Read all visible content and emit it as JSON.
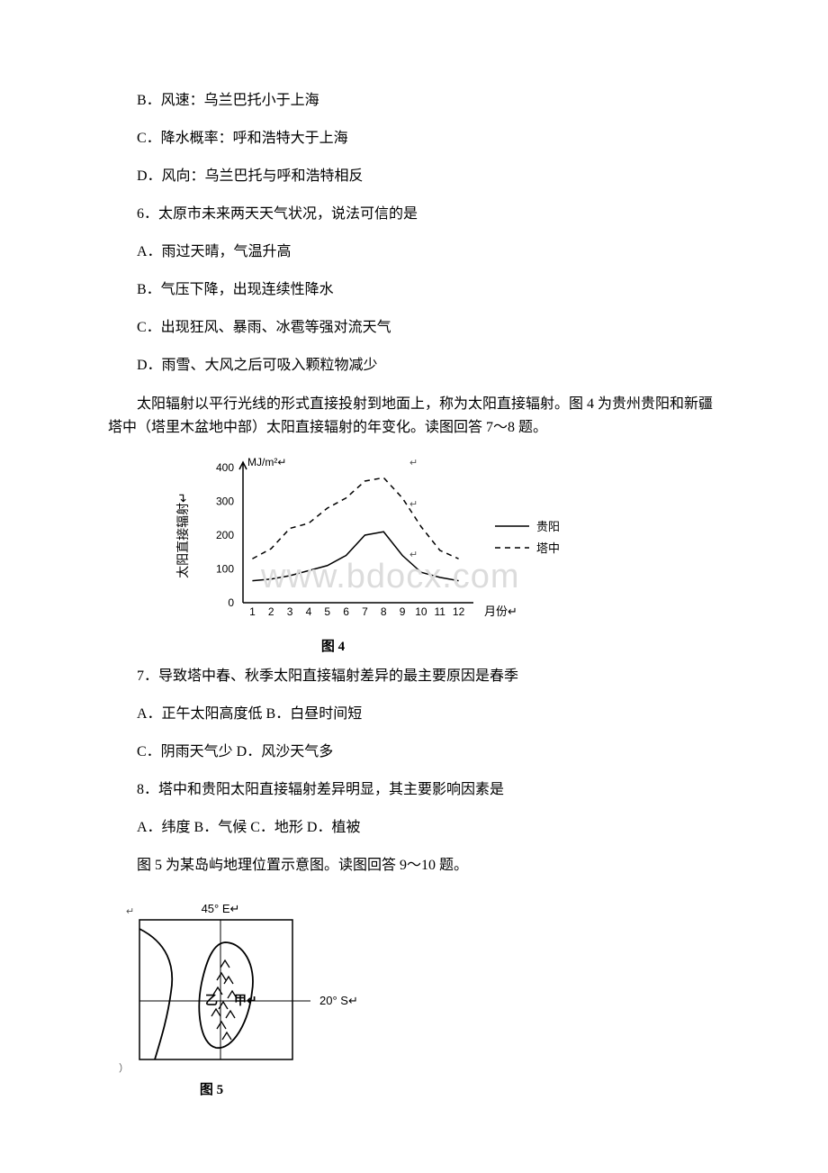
{
  "options_block1": {
    "B": "B．风速：乌兰巴托小于上海",
    "C": "C．降水概率：呼和浩特大于上海",
    "D": "D．风向：乌兰巴托与呼和浩特相反"
  },
  "q6": {
    "stem": "6．太原市未来两天天气状况，说法可信的是",
    "A": "A．雨过天晴，气温升高",
    "B": "B．气压下降，出现连续性降水",
    "C": "C．出现狂风、暴雨、冰雹等强对流天气",
    "D": "D．雨雪、大风之后可吸入颗粒物减少"
  },
  "para1": "太阳辐射以平行光线的形式直接投射到地面上，称为太阳直接辐射。图 4 为贵州贵阳和新疆塔中（塔里木盆地中部）太阳直接辐射的年变化。读图回答 7～8 题。",
  "figure4": {
    "type": "line",
    "caption": "图 4",
    "y_axis_label": "太阳直接辐射",
    "y_unit": "MJ/m²",
    "x_axis_label": "月份",
    "x_ticks": [
      1,
      2,
      3,
      4,
      5,
      6,
      7,
      8,
      9,
      10,
      11,
      12
    ],
    "ylim": [
      0,
      400
    ],
    "ytick_step": 100,
    "series": [
      {
        "name": "贵阳",
        "dash": "solid",
        "color": "#000000",
        "values": [
          65,
          70,
          80,
          95,
          110,
          140,
          200,
          210,
          140,
          90,
          75,
          65
        ]
      },
      {
        "name": "塔中",
        "dash": "dash",
        "color": "#000000",
        "values": [
          130,
          160,
          220,
          235,
          280,
          310,
          360,
          370,
          310,
          225,
          155,
          130
        ]
      }
    ],
    "legend_position": "right",
    "line_width": 1.5,
    "background_color": "#ffffff",
    "axis_color": "#000000",
    "font_size_axis": 12,
    "font_size_legend": 13
  },
  "q7": {
    "stem": "7．导致塔中春、秋季太阳直接辐射差异的最主要原因是春季",
    "A_B": "A．正午太阳高度低 B．白昼时间短",
    "C_D": "C．阴雨天气少 D．风沙天气多"
  },
  "q8": {
    "stem": "8．塔中和贵阳太阳直接辐射差异明显，其主要影响因素是",
    "A_D": "A．纬度 B．气候 C．地形 D．植被"
  },
  "para2": "图 5 为某岛屿地理位置示意图。读图回答 9～10 题。",
  "figure5": {
    "type": "map",
    "caption": "图 5",
    "lon_label": "45°  E",
    "lat_label": "20°  S",
    "markers": {
      "left": "乙",
      "right": "甲"
    },
    "stroke_color": "#000000",
    "background_color": "#ffffff",
    "font_size": 13
  },
  "watermark": "www.bdocx.com"
}
